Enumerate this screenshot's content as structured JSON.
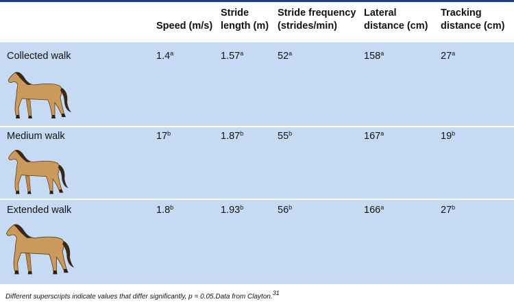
{
  "table": {
    "columns": [
      "Speed (m/s)",
      "Stride length (m)",
      "Stride frequency (strides/min)",
      "Lateral distance (cm)",
      "Tracking distance (cm)"
    ],
    "rows": [
      {
        "label": "Collected walk",
        "cells": [
          {
            "value": "1.4",
            "sup": "a"
          },
          {
            "value": "1.57",
            "sup": "a"
          },
          {
            "value": "52",
            "sup": "a"
          },
          {
            "value": "158",
            "sup": "a"
          },
          {
            "value": "27",
            "sup": "a"
          }
        ]
      },
      {
        "label": "Medium walk",
        "cells": [
          {
            "value": "17",
            "sup": "b"
          },
          {
            "value": "1.87",
            "sup": "b"
          },
          {
            "value": "55",
            "sup": "b"
          },
          {
            "value": "167",
            "sup": "a"
          },
          {
            "value": "19",
            "sup": "b"
          }
        ]
      },
      {
        "label": "Extended walk",
        "cells": [
          {
            "value": "1.8",
            "sup": "b"
          },
          {
            "value": "1.93",
            "sup": "b"
          },
          {
            "value": "56",
            "sup": "b"
          },
          {
            "value": "166",
            "sup": "a"
          },
          {
            "value": "27",
            "sup": "b"
          }
        ]
      }
    ],
    "footnote": {
      "text": "Different superscripts indicate values that differ significantly, p = 0.05.Data from Clayton.",
      "ref": "31"
    }
  }
}
